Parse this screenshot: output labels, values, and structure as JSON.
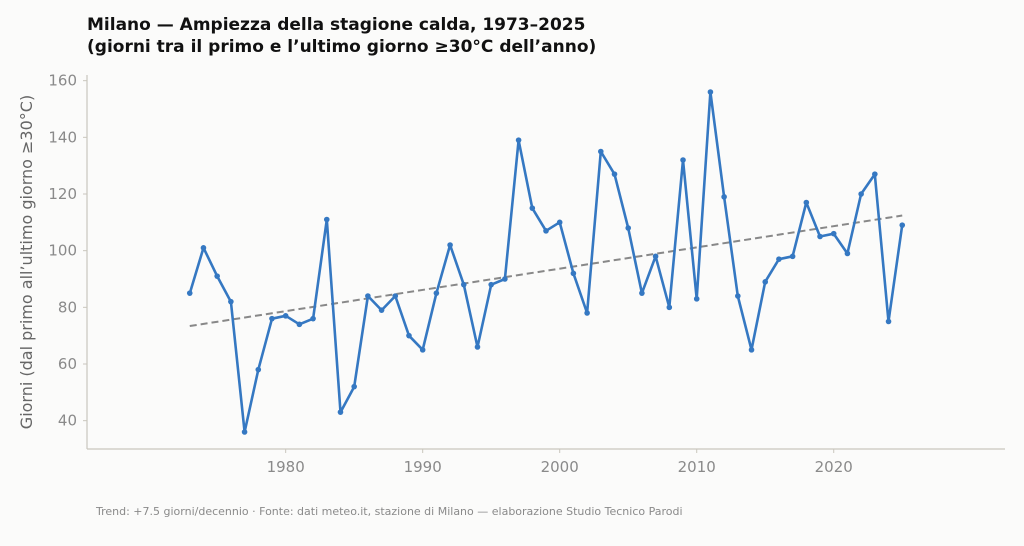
{
  "header": {
    "title_line1": "Milano — Ampiezza della stagione calda, 1973–2025",
    "title_line2": "(giorni tra il primo e l’ultimo giorno ≥30°C dell’anno)"
  },
  "footer": {
    "note": "Trend: +7.5 giorni/decennio · Fonte: dati meteo.it, stazione di Milano — elaborazione Studio Tecnico Parodi"
  },
  "chart_data": {
    "type": "line",
    "title": "Milano — Ampiezza della stagione calda, 1973–2025",
    "subtitle": "(giorni tra il primo e l’ultimo giorno ≥30°C dell’anno)",
    "xlabel": "",
    "ylabel": "Giorni (dal primo all’ultimo giorno ≥30°C)",
    "xlim": [
      1965.5,
      2032.5
    ],
    "ylim": [
      30,
      162
    ],
    "x_ticks": [
      1980,
      1990,
      2000,
      2010,
      2020
    ],
    "y_ticks": [
      40,
      60,
      80,
      100,
      120,
      140,
      160
    ],
    "grid": false,
    "series": [
      {
        "color": "#3578c2",
        "style": "solid-with-markers",
        "x": [
          1973,
          1974,
          1975,
          1976,
          1977,
          1978,
          1979,
          1980,
          1981,
          1982,
          1983,
          1984,
          1985,
          1986,
          1987,
          1988,
          1989,
          1990,
          1991,
          1992,
          1993,
          1994,
          1995,
          1996,
          1997,
          1998,
          1999,
          2000,
          2001,
          2002,
          2003,
          2004,
          2005,
          2006,
          2007,
          2008,
          2009,
          2010,
          2011,
          2012,
          2013,
          2014,
          2015,
          2016,
          2017,
          2018,
          2019,
          2020,
          2021,
          2022,
          2023,
          2024,
          2025
        ],
        "y": [
          85,
          101,
          91,
          82,
          36,
          58,
          76,
          77,
          74,
          76,
          111,
          43,
          52,
          84,
          79,
          84,
          70,
          65,
          85,
          102,
          88,
          66,
          88,
          90,
          139,
          115,
          107,
          110,
          92,
          78,
          135,
          127,
          108,
          85,
          98,
          80,
          132,
          83,
          156,
          119,
          84,
          65,
          89,
          97,
          98,
          117,
          105,
          106,
          99,
          120,
          127,
          75,
          109
        ]
      }
    ],
    "trend": {
      "color": "#888888",
      "style": "dashed",
      "x": [
        1973,
        2025
      ],
      "y": [
        73.4,
        112.4
      ]
    }
  }
}
